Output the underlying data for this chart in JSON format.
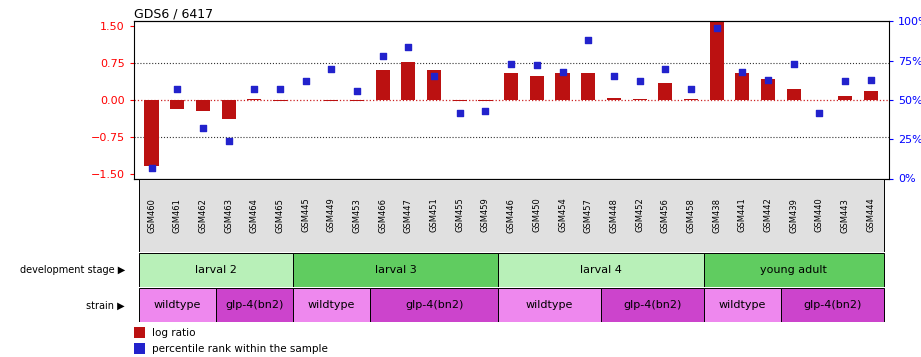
{
  "title": "GDS6 / 6417",
  "samples": [
    "GSM460",
    "GSM461",
    "GSM462",
    "GSM463",
    "GSM464",
    "GSM465",
    "GSM445",
    "GSM449",
    "GSM453",
    "GSM466",
    "GSM447",
    "GSM451",
    "GSM455",
    "GSM459",
    "GSM446",
    "GSM450",
    "GSM454",
    "GSM457",
    "GSM448",
    "GSM452",
    "GSM456",
    "GSM458",
    "GSM438",
    "GSM441",
    "GSM442",
    "GSM439",
    "GSM440",
    "GSM443",
    "GSM444"
  ],
  "log_ratio": [
    -1.35,
    -0.18,
    -0.22,
    -0.38,
    0.02,
    -0.02,
    0.0,
    -0.02,
    -0.02,
    0.62,
    0.78,
    0.62,
    -0.02,
    -0.02,
    0.55,
    0.48,
    0.55,
    0.55,
    0.05,
    0.02,
    0.35,
    0.02,
    1.62,
    0.55,
    0.42,
    0.22,
    0.0,
    0.08,
    0.18
  ],
  "percentile": [
    7,
    57,
    32,
    24,
    57,
    57,
    62,
    70,
    56,
    78,
    84,
    65,
    42,
    43,
    73,
    72,
    68,
    88,
    65,
    62,
    70,
    57,
    96,
    68,
    63,
    73,
    42,
    62,
    63
  ],
  "dev_stages": [
    {
      "label": "larval 2",
      "start": 0,
      "end": 6,
      "color": "#b8f0b8"
    },
    {
      "label": "larval 3",
      "start": 6,
      "end": 14,
      "color": "#60cc60"
    },
    {
      "label": "larval 4",
      "start": 14,
      "end": 22,
      "color": "#b8f0b8"
    },
    {
      "label": "young adult",
      "start": 22,
      "end": 29,
      "color": "#60cc60"
    }
  ],
  "strains": [
    {
      "label": "wildtype",
      "start": 0,
      "end": 3,
      "color": "#ee88ee"
    },
    {
      "label": "glp-4(bn2)",
      "start": 3,
      "end": 6,
      "color": "#cc44cc"
    },
    {
      "label": "wildtype",
      "start": 6,
      "end": 9,
      "color": "#ee88ee"
    },
    {
      "label": "glp-4(bn2)",
      "start": 9,
      "end": 14,
      "color": "#cc44cc"
    },
    {
      "label": "wildtype",
      "start": 14,
      "end": 18,
      "color": "#ee88ee"
    },
    {
      "label": "glp-4(bn2)",
      "start": 18,
      "end": 22,
      "color": "#cc44cc"
    },
    {
      "label": "wildtype",
      "start": 22,
      "end": 25,
      "color": "#ee88ee"
    },
    {
      "label": "glp-4(bn2)",
      "start": 25,
      "end": 29,
      "color": "#cc44cc"
    }
  ],
  "bar_color": "#bb1111",
  "dot_color": "#2222cc",
  "ylim": [
    -1.6,
    1.6
  ],
  "y2lim": [
    0,
    100
  ],
  "yticks": [
    -1.5,
    -0.75,
    0.0,
    0.75,
    1.5
  ],
  "y2ticks": [
    0,
    25,
    50,
    75,
    100
  ],
  "hline_color": "#cc2222",
  "dotline_color": "#333333"
}
